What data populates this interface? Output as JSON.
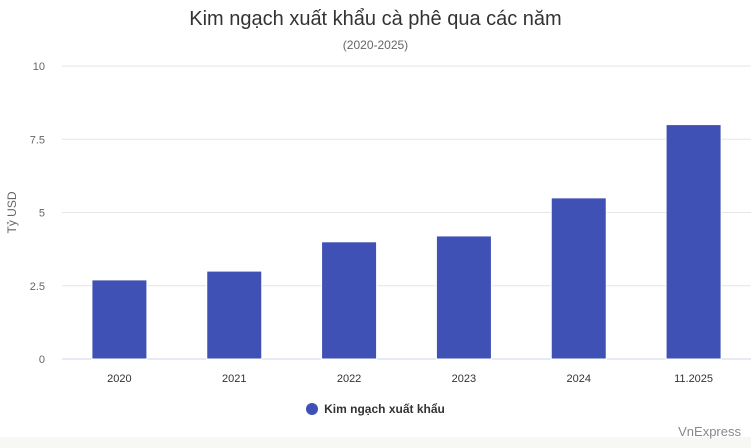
{
  "chart_data": {
    "type": "bar",
    "title": "Kim ngạch xuất khẩu cà phê qua các năm",
    "subtitle": "(2020-2025)",
    "ylabel": "Tỷ USD",
    "xlabel": "",
    "categories": [
      "2020",
      "2021",
      "2022",
      "2023",
      "2024",
      "11.2025"
    ],
    "series": [
      {
        "name": "Kim ngạch xuất khẩu",
        "values": [
          2.7,
          3.0,
          4.0,
          4.2,
          5.5,
          8.0
        ]
      }
    ],
    "ylim": [
      0,
      10
    ],
    "yticks": [
      "0",
      "2.5",
      "5",
      "7.5",
      "10"
    ],
    "grid": true,
    "legend": "bottom",
    "color": "#3f51b5"
  },
  "credit": "VnExpress"
}
